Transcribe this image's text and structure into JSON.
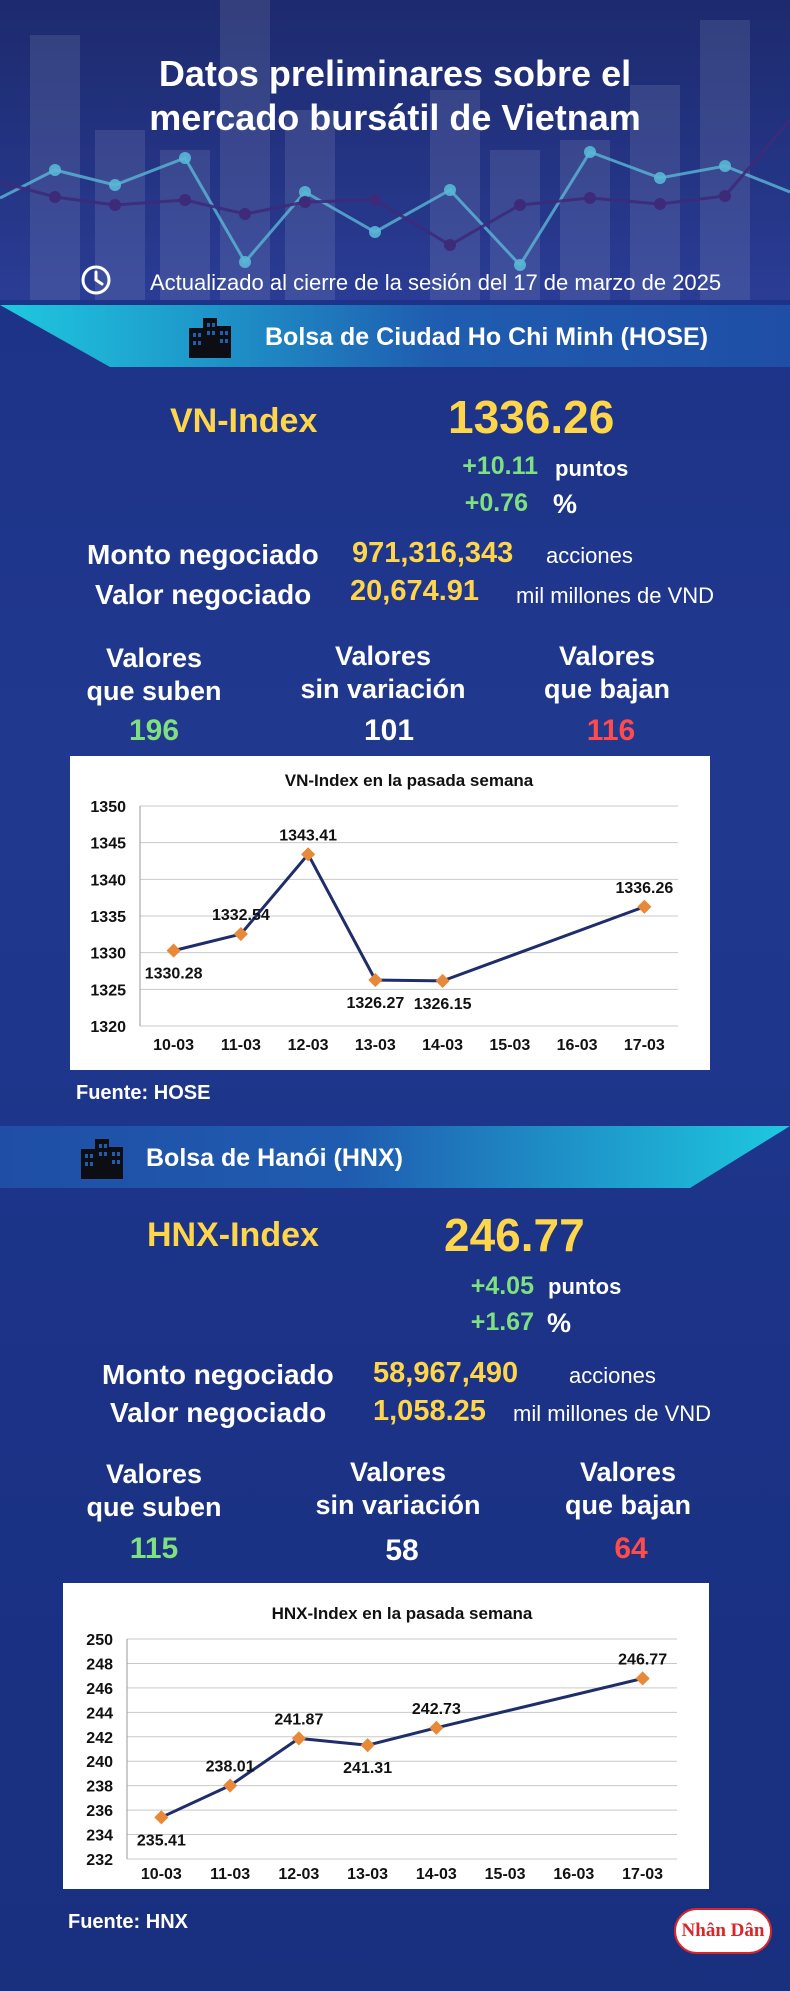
{
  "header": {
    "title_line1": "Datos preliminares sobre el",
    "title_line2": "mercado bursátil de Vietnam",
    "updated": "Actualizado al cierre de la sesión del 17 de marzo de 2025"
  },
  "colors": {
    "up": "#7ee07e",
    "down": "#ff4b4b",
    "accent": "#ffd54a",
    "unchanged": "#ffffff",
    "band": "#1ec9e0"
  },
  "icons": {
    "clock": "clock-icon",
    "building": "building-icon"
  },
  "hose": {
    "exchange": "Bolsa de Ciudad Ho Chi Minh (HOSE)",
    "index_name": "VN-Index",
    "index_value": "1336.26",
    "change_points": "+10.11",
    "points_unit": "puntos",
    "change_pct": "+0.76",
    "pct_unit": "%",
    "volume_label": "Monto negociado",
    "volume_value": "971,316,343",
    "volume_unit": "acciones",
    "value_label": "Valor negociado",
    "value_value": "20,674.91",
    "value_unit": "mil millones de VND",
    "up_label_1": "Valores",
    "up_label_2": "que suben",
    "up_count": "196",
    "flat_label_1": "Valores",
    "flat_label_2": "sin variación",
    "flat_count": "101",
    "down_label_1": "Valores",
    "down_label_2": "que bajan",
    "down_count": "116",
    "source": "Fuente: HOSE"
  },
  "hnx": {
    "exchange": "Bolsa de Hanói (HNX)",
    "index_name": "HNX-Index",
    "index_value": "246.77",
    "change_points": "+4.05",
    "points_unit": "puntos",
    "change_pct": "+1.67",
    "pct_unit": "%",
    "volume_label": "Monto negociado",
    "volume_value": "58,967,490",
    "volume_unit": "acciones",
    "value_label": "Valor negociado",
    "value_value": "1,058.25",
    "value_unit": "mil millones de VND",
    "up_label_1": "Valores",
    "up_label_2": "que suben",
    "up_count": "115",
    "flat_label_1": "Valores",
    "flat_label_2": "sin variación",
    "flat_count": "58",
    "down_label_1": "Valores",
    "down_label_2": "que bajan",
    "down_count": "64",
    "source": "Fuente:  HNX"
  },
  "logo_text": "Nhân Dân",
  "chart_data": [
    {
      "type": "line",
      "title": "VN-Index en la pasada semana",
      "categories": [
        "10-03",
        "11-03",
        "12-03",
        "13-03",
        "14-03",
        "15-03",
        "16-03",
        "17-03"
      ],
      "points": [
        {
          "x": "10-03",
          "y": 1330.28,
          "label": "1330.28"
        },
        {
          "x": "11-03",
          "y": 1332.54,
          "label": "1332.54"
        },
        {
          "x": "12-03",
          "y": 1343.41,
          "label": "1343.41"
        },
        {
          "x": "13-03",
          "y": 1326.27,
          "label": "1326.27"
        },
        {
          "x": "14-03",
          "y": 1326.15,
          "label": "1326.15"
        },
        {
          "x": "17-03",
          "y": 1336.26,
          "label": "1336.26"
        }
      ],
      "yticks": [
        "1320",
        "1325",
        "1330",
        "1335",
        "1340",
        "1345",
        "1350"
      ],
      "ylim": [
        1320,
        1350
      ],
      "grid": true,
      "line_color": "#1f2d6b",
      "marker_color": "#e8893a"
    },
    {
      "type": "line",
      "title": "HNX-Index en la pasada semana",
      "categories": [
        "10-03",
        "11-03",
        "12-03",
        "13-03",
        "14-03",
        "15-03",
        "16-03",
        "17-03"
      ],
      "points": [
        {
          "x": "10-03",
          "y": 235.41,
          "label": "235.41"
        },
        {
          "x": "11-03",
          "y": 238.01,
          "label": "238.01"
        },
        {
          "x": "12-03",
          "y": 241.87,
          "label": "241.87"
        },
        {
          "x": "13-03",
          "y": 241.31,
          "label": "241.31"
        },
        {
          "x": "14-03",
          "y": 242.73,
          "label": "242.73"
        },
        {
          "x": "17-03",
          "y": 246.77,
          "label": "246.77"
        }
      ],
      "yticks": [
        "232",
        "234",
        "236",
        "238",
        "240",
        "242",
        "244",
        "246",
        "248",
        "250"
      ],
      "ylim": [
        232,
        250
      ],
      "grid": true,
      "line_color": "#1f2d6b",
      "marker_color": "#e8893a"
    }
  ]
}
